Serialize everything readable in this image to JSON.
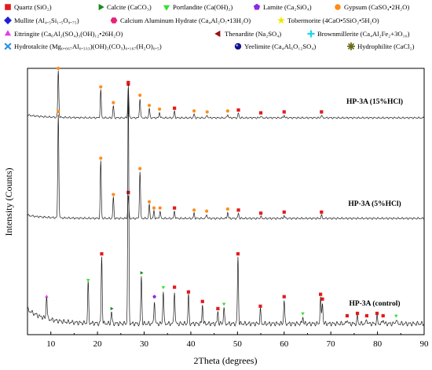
{
  "chart_data": {
    "type": "line",
    "xlabel": "2Theta (degrees)",
    "ylabel": "Intensity (Counts)",
    "xlim": [
      5,
      90
    ],
    "xticks": [
      10,
      20,
      30,
      40,
      50,
      60,
      70,
      80,
      90
    ],
    "legend": [
      {
        "symbol": "square",
        "color": "#e31a1c",
        "label": "Quartz (SiO₂)"
      },
      {
        "symbol": "triangle-right",
        "color": "#1a8a1a",
        "label": "Calcite (CaCO₃)"
      },
      {
        "symbol": "triangle-down",
        "color": "#33e033",
        "label": "Portlandite (Ca(OH)₂)"
      },
      {
        "symbol": "pentagon",
        "color": "#8a2be2",
        "label": "Larnite (Ca₂SiO₄)"
      },
      {
        "symbol": "circle",
        "color": "#ff8c1a",
        "label": "Gypsum (CaSO₄•2H₂O)"
      },
      {
        "symbol": "diamond",
        "color": "#1f1fd6",
        "label": "Mullite (Al₄.₅Si₁.₅O₉.₇₅)"
      },
      {
        "symbol": "hexagon",
        "color": "#e8217a",
        "label": "Calcium Aluminum Hydrate (Ca₄Al₂O₇•13H₂O)"
      },
      {
        "symbol": "star",
        "color": "#f2e600",
        "label": "Tobermorite (4CaO•5SiO₂•5H₂O)"
      },
      {
        "symbol": "triangle-up",
        "color": "#e040e0",
        "label": "Ettringite (Ca₆Al₂(SO₄)₃(OH)₁₂•26H₂O)"
      },
      {
        "symbol": "triangle-left",
        "color": "#9b0f0f",
        "label": "Thenardite (Na₂SO₄)"
      },
      {
        "symbol": "plus",
        "color": "#22d3ee",
        "label": "Brownmillerite (Ca₄Al₂Fe₂+3O₁₀)"
      },
      {
        "symbol": "x",
        "color": "#2b8fe8",
        "label": "Hydrotalcite (Mg₀.₆₆₇Al₀.₃₃₃)(OH)₂(CO₃)₀.₁₆₇(H₂O)₀.₅)"
      },
      {
        "symbol": "ball",
        "color": "#14148f",
        "label": "Yeelimite (Ca₄Al₆O₁₂SO₄)"
      },
      {
        "symbol": "asterisk",
        "color": "#6b6b1a",
        "label": "Hydrophilite (CaCl₂)"
      }
    ],
    "series": [
      {
        "name": "HP-3A (15%HCl)",
        "baseline": 0.03,
        "peaks": [
          {
            "x": 11.6,
            "h": 0.5,
            "marker": "circle"
          },
          {
            "x": 20.7,
            "h": 0.3,
            "marker": "circle"
          },
          {
            "x": 23.4,
            "h": 0.13,
            "marker": "circle"
          },
          {
            "x": 26.6,
            "h": 0.33,
            "marker": "square"
          },
          {
            "x": 29.1,
            "h": 0.21,
            "marker": "circle"
          },
          {
            "x": 31.1,
            "h": 0.1,
            "marker": "circle"
          },
          {
            "x": 33.3,
            "h": 0.06,
            "marker": "circle"
          },
          {
            "x": 36.5,
            "h": 0.07,
            "marker": "square"
          },
          {
            "x": 40.7,
            "h": 0.04,
            "marker": "circle"
          },
          {
            "x": 43.5,
            "h": 0.03,
            "marker": "circle"
          },
          {
            "x": 47.9,
            "h": 0.04,
            "marker": "circle"
          },
          {
            "x": 50.2,
            "h": 0.05,
            "marker": "square"
          },
          {
            "x": 55.0,
            "h": 0.02,
            "marker": "square"
          },
          {
            "x": 60.0,
            "h": 0.03,
            "marker": "square"
          },
          {
            "x": 68.0,
            "h": 0.03,
            "marker": "square"
          }
        ]
      },
      {
        "name": "HP-3A (5%HCl)",
        "baseline": 0.03,
        "peaks": [
          {
            "x": 11.6,
            "h": 1.0,
            "marker": "circle"
          },
          {
            "x": 20.7,
            "h": 0.55,
            "marker": "circle"
          },
          {
            "x": 23.4,
            "h": 0.2,
            "marker": "circle"
          },
          {
            "x": 26.6,
            "h": 0.22,
            "marker": "square"
          },
          {
            "x": 29.1,
            "h": 0.45,
            "marker": "circle"
          },
          {
            "x": 31.1,
            "h": 0.13,
            "marker": "circle"
          },
          {
            "x": 32.1,
            "h": 0.07,
            "marker": "circle"
          },
          {
            "x": 33.4,
            "h": 0.07,
            "marker": "circle"
          },
          {
            "x": 36.5,
            "h": 0.07,
            "marker": "square"
          },
          {
            "x": 40.7,
            "h": 0.05,
            "marker": "circle"
          },
          {
            "x": 43.4,
            "h": 0.04,
            "marker": "circle"
          },
          {
            "x": 47.9,
            "h": 0.06,
            "marker": "circle"
          },
          {
            "x": 50.2,
            "h": 0.05,
            "marker": "square"
          },
          {
            "x": 55.0,
            "h": 0.02,
            "marker": "square"
          },
          {
            "x": 60.0,
            "h": 0.03,
            "marker": "square"
          },
          {
            "x": 68.0,
            "h": 0.03,
            "marker": "square"
          }
        ]
      },
      {
        "name": "HP-3A (control)",
        "baseline": 0.06,
        "peaks": [
          {
            "x": 9.1,
            "h": 0.1,
            "marker": "triangle-up"
          },
          {
            "x": 18.0,
            "h": 0.17,
            "marker": "triangle-down"
          },
          {
            "x": 20.9,
            "h": 0.28,
            "marker": "square"
          },
          {
            "x": 23.0,
            "h": 0.05,
            "marker": "triangle-right"
          },
          {
            "x": 26.6,
            "h": 1.0,
            "marker": "square"
          },
          {
            "x": 29.4,
            "h": 0.2,
            "marker": "triangle-right"
          },
          {
            "x": 32.2,
            "h": 0.1,
            "marker": "pentagon"
          },
          {
            "x": 34.1,
            "h": 0.14,
            "marker": "triangle-down"
          },
          {
            "x": 36.5,
            "h": 0.14,
            "marker": "square"
          },
          {
            "x": 39.5,
            "h": 0.12,
            "marker": "square"
          },
          {
            "x": 42.5,
            "h": 0.08,
            "marker": "square"
          },
          {
            "x": 45.8,
            "h": 0.05,
            "marker": "square"
          },
          {
            "x": 47.1,
            "h": 0.07,
            "marker": "triangle-down"
          },
          {
            "x": 50.1,
            "h": 0.28,
            "marker": "square"
          },
          {
            "x": 54.9,
            "h": 0.06,
            "marker": "square"
          },
          {
            "x": 60.0,
            "h": 0.1,
            "marker": "square"
          },
          {
            "x": 64.0,
            "h": 0.03,
            "marker": "triangle-down"
          },
          {
            "x": 67.8,
            "h": 0.11,
            "marker": "square"
          },
          {
            "x": 68.2,
            "h": 0.09,
            "marker": "square"
          },
          {
            "x": 73.5,
            "h": 0.02,
            "marker": "square"
          },
          {
            "x": 75.7,
            "h": 0.03,
            "marker": "square"
          },
          {
            "x": 77.7,
            "h": 0.02,
            "marker": "square"
          },
          {
            "x": 79.9,
            "h": 0.03,
            "marker": "square"
          },
          {
            "x": 81.2,
            "h": 0.02,
            "marker": "square"
          },
          {
            "x": 84.0,
            "h": 0.02,
            "marker": "triangle-down"
          }
        ]
      }
    ]
  }
}
